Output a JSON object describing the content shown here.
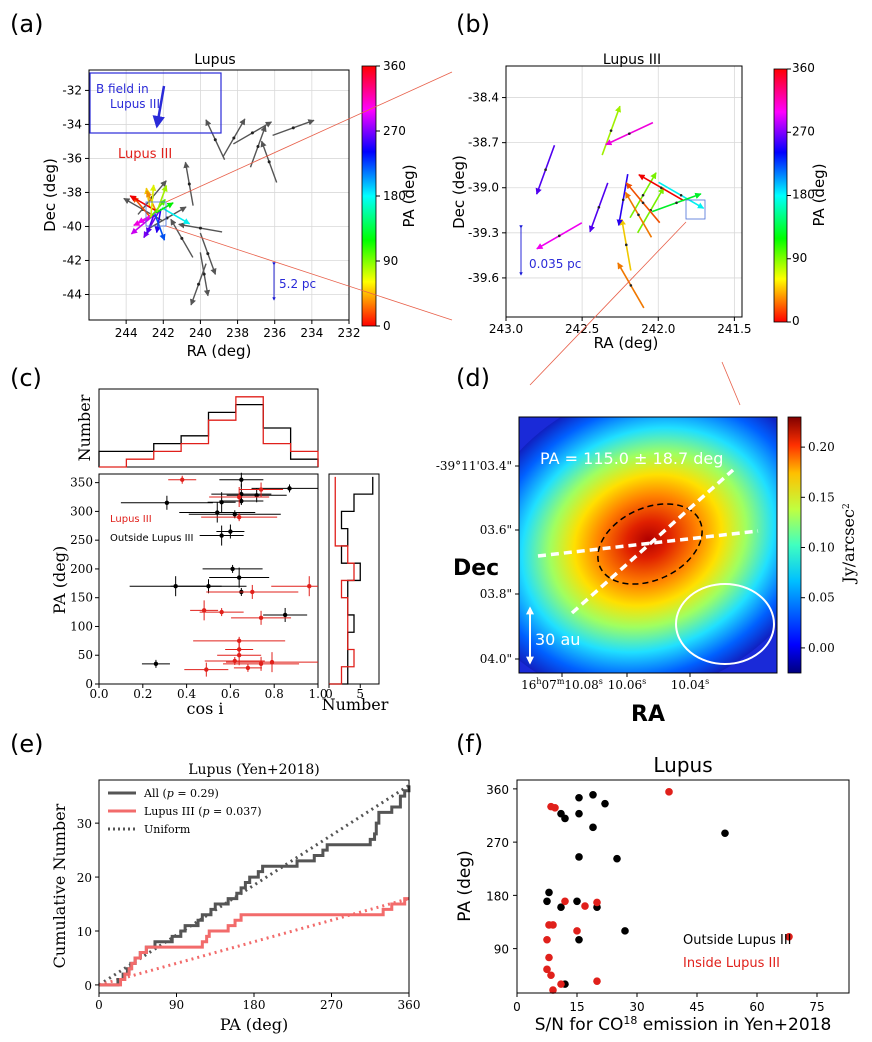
{
  "panels": {
    "a": {
      "label": "(a)"
    },
    "b": {
      "label": "(b)"
    },
    "c": {
      "label": "(c)"
    },
    "d": {
      "label": "(d)"
    },
    "e": {
      "label": "(e)"
    },
    "f": {
      "label": "(f)"
    }
  },
  "chart_data": [
    {
      "panel": "a",
      "type": "scatter",
      "title": "Lupus",
      "xlabel": "RA (deg)",
      "ylabel": "Dec (deg)",
      "xticks": [
        "244",
        "242",
        "240",
        "238",
        "236",
        "234",
        "232"
      ],
      "yticks": [
        "-32",
        "-34",
        "-36",
        "-38",
        "-40",
        "-42",
        "-44"
      ],
      "xlim": [
        246,
        232
      ],
      "ylim": [
        -45.5,
        -30.8
      ],
      "inset_text": [
        "B field in",
        "Lupus III"
      ],
      "region_label": "Lupus III",
      "scale_label": "5.2 pc",
      "colorbar": {
        "label": "PA (deg)",
        "ticks": [
          "360",
          "270",
          "180",
          "90",
          "0"
        ]
      },
      "gray_vectors": [
        {
          "ra": 239.2,
          "dec": -34.9,
          "pa": 25
        },
        {
          "ra": 238.2,
          "dec": -34.8,
          "pa": 330
        },
        {
          "ra": 237.2,
          "dec": -34.5,
          "pa": 300
        },
        {
          "ra": 236.9,
          "dec": -35.3,
          "pa": 340
        },
        {
          "ra": 235.0,
          "dec": -34.2,
          "pa": 290
        },
        {
          "ra": 236.3,
          "dec": -36.2,
          "pa": 20
        },
        {
          "ra": 240.6,
          "dec": -37.5,
          "pa": 10
        },
        {
          "ra": 243.1,
          "dec": -39.0,
          "pa": 60
        },
        {
          "ra": 240.0,
          "dec": -40.1,
          "pa": 80
        },
        {
          "ra": 241.0,
          "dec": -40.7,
          "pa": 30
        },
        {
          "ra": 239.6,
          "dec": -41.6,
          "pa": 200
        },
        {
          "ra": 239.8,
          "dec": -42.8,
          "pa": 190
        },
        {
          "ra": 240.1,
          "dec": -43.4,
          "pa": 160
        },
        {
          "ra": 241.8,
          "dec": -39.5,
          "pa": 300
        },
        {
          "ra": 242.6,
          "dec": -38.3,
          "pa": 320
        }
      ],
      "colored_vectors": [
        {
          "pa": 10
        },
        {
          "pa": 25
        },
        {
          "pa": 40
        },
        {
          "pa": 60
        },
        {
          "pa": 115
        },
        {
          "pa": 120
        },
        {
          "pa": 130
        },
        {
          "pa": 150
        },
        {
          "pa": 160
        },
        {
          "pa": 170
        },
        {
          "pa": 200
        },
        {
          "pa": 240
        },
        {
          "pa": 300
        },
        {
          "pa": 320
        },
        {
          "pa": 340
        },
        {
          "pa": 355
        }
      ]
    },
    {
      "panel": "b",
      "type": "scatter",
      "title": "Lupus III",
      "xlabel": "RA (deg)",
      "ylabel": "Dec (deg)",
      "xticks": [
        "243.0",
        "242.5",
        "242.0",
        "241.5"
      ],
      "yticks": [
        "-38.4",
        "-38.7",
        "-39.0",
        "-39.3",
        "-39.6"
      ],
      "xlim": [
        243.0,
        241.45
      ],
      "ylim": [
        -39.86,
        -38.19
      ],
      "scale_label": "0.035 pc",
      "colorbar": {
        "label": "PA (deg)",
        "ticks": [
          "360",
          "270",
          "180",
          "90",
          "0"
        ]
      },
      "vectors": [
        {
          "ra": 242.31,
          "dec": -38.62,
          "pa": 340
        },
        {
          "ra": 242.19,
          "dec": -38.64,
          "pa": 115
        },
        {
          "ra": 242.74,
          "dec": -38.88,
          "pa": 160
        },
        {
          "ra": 242.65,
          "dec": -39.32,
          "pa": 120
        },
        {
          "ra": 242.39,
          "dec": -39.13,
          "pa": 160
        },
        {
          "ra": 242.21,
          "dec": -39.38,
          "pa": 10
        },
        {
          "ra": 242.23,
          "dec": -39.08,
          "pa": 170
        },
        {
          "ra": 242.1,
          "dec": -39.05,
          "pa": 330
        },
        {
          "ra": 242.05,
          "dec": -39.15,
          "pa": 330
        },
        {
          "ra": 242.1,
          "dec": -39.1,
          "pa": 40
        },
        {
          "ra": 241.98,
          "dec": -39.0,
          "pa": 60
        },
        {
          "ra": 241.85,
          "dec": -39.05,
          "pa": 240
        },
        {
          "ra": 241.88,
          "dec": -39.1,
          "pa": 290
        },
        {
          "ra": 242.13,
          "dec": -39.18,
          "pa": 30
        },
        {
          "ra": 242.18,
          "dec": -39.65,
          "pa": 30
        }
      ]
    },
    {
      "panel": "c",
      "type": "scatter",
      "xlabel": "cos i",
      "ylabel": "PA (deg)",
      "xticks": [
        "0.0",
        "0.2",
        "0.4",
        "0.6",
        "0.8",
        "1.0"
      ],
      "yticks": [
        "0",
        "50",
        "100",
        "150",
        "200",
        "250",
        "300",
        "350"
      ],
      "xlim": [
        0,
        1
      ],
      "ylim": [
        0,
        365
      ],
      "top_hist_label": "Number",
      "right_hist_label": "Number",
      "right_hist_ticks": [
        "0",
        "5"
      ],
      "legend": [
        "Lupus III",
        "Outside Lupus III"
      ],
      "outside_points": [
        {
          "x": 0.26,
          "y": 35
        },
        {
          "x": 0.65,
          "y": 355
        },
        {
          "x": 0.65,
          "y": 330
        },
        {
          "x": 0.87,
          "y": 340
        },
        {
          "x": 0.31,
          "y": 315
        },
        {
          "x": 0.56,
          "y": 316
        },
        {
          "x": 0.65,
          "y": 318
        },
        {
          "x": 0.72,
          "y": 328
        },
        {
          "x": 0.54,
          "y": 298
        },
        {
          "x": 0.62,
          "y": 295
        },
        {
          "x": 0.6,
          "y": 265
        },
        {
          "x": 0.56,
          "y": 258
        },
        {
          "x": 0.61,
          "y": 200
        },
        {
          "x": 0.5,
          "y": 170
        },
        {
          "x": 0.35,
          "y": 170
        },
        {
          "x": 0.65,
          "y": 160
        },
        {
          "x": 0.85,
          "y": 120
        },
        {
          "x": 0.64,
          "y": 185
        }
      ],
      "lupus3_points": [
        {
          "x": 0.38,
          "y": 355
        },
        {
          "x": 0.74,
          "y": 338
        },
        {
          "x": 0.64,
          "y": 325
        },
        {
          "x": 0.64,
          "y": 290
        },
        {
          "x": 0.7,
          "y": 160
        },
        {
          "x": 0.48,
          "y": 128
        },
        {
          "x": 0.56,
          "y": 125
        },
        {
          "x": 0.74,
          "y": 115
        },
        {
          "x": 0.96,
          "y": 170
        },
        {
          "x": 0.64,
          "y": 75
        },
        {
          "x": 0.64,
          "y": 60
        },
        {
          "x": 0.64,
          "y": 50
        },
        {
          "x": 0.62,
          "y": 40
        },
        {
          "x": 0.74,
          "y": 35
        },
        {
          "x": 0.79,
          "y": 38
        },
        {
          "x": 0.68,
          "y": 28
        },
        {
          "x": 0.49,
          "y": 25
        }
      ],
      "cos_hist_bins": [
        0,
        0.125,
        0.25,
        0.375,
        0.5,
        0.625,
        0.75,
        0.875,
        1.0
      ],
      "cos_hist_all": [
        2,
        2,
        3,
        4,
        7,
        8,
        5,
        1
      ],
      "cos_hist_lupus3": [
        0,
        1,
        2,
        3,
        6,
        9,
        3,
        2
      ],
      "pa_hist_bins": [
        0,
        30,
        60,
        90,
        120,
        150,
        180,
        210,
        240,
        270,
        300,
        330,
        360
      ],
      "pa_hist_all": [
        3,
        3,
        3,
        4,
        3,
        3,
        5,
        2,
        3,
        2,
        4,
        7
      ],
      "pa_hist_lupus3": [
        2,
        4,
        3,
        3,
        3,
        2,
        4,
        3,
        1,
        1,
        1,
        1
      ]
    },
    {
      "panel": "d",
      "type": "heatmap",
      "annotation": "PA = 115.0 ± 18.7 deg",
      "xlabel": "RA",
      "ylabel": "Dec",
      "yticks": [
        "-39°11'03.4\"",
        "03.6\"",
        "03.8\"",
        "04.0\""
      ],
      "xticks": [
        "16h07m10.08s",
        "10.06s",
        "10.04s"
      ],
      "xticks_rich": [
        {
          "pre": "16",
          "s1": "h",
          "m": "07",
          "s2": "m",
          "rest": "10.08",
          "s3": "s"
        },
        {
          "pre": "10.06",
          "s1": "s"
        },
        {
          "pre": "10.04",
          "s1": "s"
        }
      ],
      "scale_label": "30 au",
      "colorbar": {
        "label": "Jy/arcsec",
        "label_sup": "2",
        "ticks": [
          "0.20",
          "0.15",
          "0.10",
          "0.05",
          "0.00"
        ],
        "tick_values": [
          0.2,
          0.15,
          0.1,
          0.05,
          0.0
        ],
        "range": [
          -0.025,
          0.23
        ]
      }
    },
    {
      "panel": "e",
      "type": "line",
      "title": "Lupus (Yen+2018)",
      "xlabel": "PA (deg)",
      "ylabel": "Cumulative Number",
      "xticks": [
        "0",
        "90",
        "180",
        "270",
        "360"
      ],
      "yticks": [
        "0",
        "10",
        "20",
        "30"
      ],
      "xlim": [
        0,
        360
      ],
      "ylim": [
        -1.5,
        38
      ],
      "series": [
        {
          "name": "All (p = 0.29)",
          "name_main": "All (",
          "name_p": "p",
          "name_tail": " = 0.29)",
          "color": "#555555",
          "x": [
            0,
            18,
            22,
            28,
            33,
            37,
            42,
            48,
            55,
            65,
            85,
            95,
            100,
            115,
            120,
            130,
            135,
            150,
            160,
            165,
            170,
            175,
            185,
            190,
            220,
            230,
            245,
            250,
            260,
            265,
            300,
            315,
            320,
            322,
            325,
            340,
            350,
            355,
            360
          ],
          "y": [
            0,
            0,
            1,
            2,
            3,
            4,
            5,
            6,
            7,
            8,
            9,
            10,
            11,
            12,
            13,
            14,
            15,
            16,
            17,
            18,
            19,
            20,
            21,
            22,
            22,
            23,
            23,
            24,
            25,
            26,
            26,
            27,
            28,
            30,
            32,
            33,
            35,
            36,
            37
          ]
        },
        {
          "name": "Lupus III (p = 0.037)",
          "name_main": "Lupus III (",
          "name_p": "p",
          "name_tail": " = 0.037)",
          "color": "#f26b6b",
          "x": [
            0,
            20,
            25,
            30,
            35,
            38,
            42,
            48,
            55,
            115,
            120,
            125,
            128,
            150,
            158,
            165,
            170,
            330,
            340,
            355,
            360
          ],
          "y": [
            0,
            0,
            1,
            2,
            3,
            4,
            5,
            6,
            7,
            7,
            8,
            9,
            10,
            11,
            12,
            13,
            13,
            14,
            15,
            16,
            16
          ]
        },
        {
          "name": "Uniform",
          "style": "dotted",
          "segments": [
            {
              "x": [
                0,
                360
              ],
              "y": [
                0,
                37
              ]
            },
            {
              "x": [
                0,
                360
              ],
              "y": [
                0,
                16
              ]
            }
          ]
        }
      ]
    },
    {
      "panel": "f",
      "type": "scatter",
      "title": "Lupus",
      "xlabel_main": "S/N for CO",
      "xlabel_sup": "18",
      "xlabel_tail": " emission in Yen+2018",
      "ylabel": "PA (deg)",
      "xticks": [
        "0",
        "15",
        "30",
        "45",
        "60",
        "75"
      ],
      "yticks": [
        "90",
        "180",
        "270",
        "360"
      ],
      "xlim": [
        0,
        83
      ],
      "ylim": [
        15,
        375
      ],
      "legend": [
        {
          "label": "Outside Lupus III",
          "color": "#000000"
        },
        {
          "label": "Inside Lupus III",
          "color": "#e0201b"
        }
      ],
      "outside": [
        {
          "x": 15.5,
          "y": 345
        },
        {
          "x": 19,
          "y": 350
        },
        {
          "x": 22,
          "y": 335
        },
        {
          "x": 11,
          "y": 318
        },
        {
          "x": 12,
          "y": 310
        },
        {
          "x": 15.5,
          "y": 318
        },
        {
          "x": 19,
          "y": 295
        },
        {
          "x": 52,
          "y": 285
        },
        {
          "x": 15.5,
          "y": 245
        },
        {
          "x": 25,
          "y": 242
        },
        {
          "x": 8,
          "y": 185
        },
        {
          "x": 7.5,
          "y": 170
        },
        {
          "x": 11,
          "y": 160
        },
        {
          "x": 15,
          "y": 170
        },
        {
          "x": 20,
          "y": 160
        },
        {
          "x": 27,
          "y": 120
        },
        {
          "x": 15.5,
          "y": 105
        },
        {
          "x": 12,
          "y": 30
        }
      ],
      "inside": [
        {
          "x": 38,
          "y": 355
        },
        {
          "x": 8.5,
          "y": 330
        },
        {
          "x": 9.5,
          "y": 328
        },
        {
          "x": 12,
          "y": 170
        },
        {
          "x": 17,
          "y": 162
        },
        {
          "x": 20,
          "y": 168
        },
        {
          "x": 8,
          "y": 130
        },
        {
          "x": 9,
          "y": 130
        },
        {
          "x": 15,
          "y": 120
        },
        {
          "x": 7.5,
          "y": 105
        },
        {
          "x": 68,
          "y": 110
        },
        {
          "x": 8,
          "y": 75
        },
        {
          "x": 7.5,
          "y": 55
        },
        {
          "x": 8.5,
          "y": 45
        },
        {
          "x": 9,
          "y": 20
        },
        {
          "x": 11,
          "y": 30
        },
        {
          "x": 20,
          "y": 35
        }
      ]
    }
  ]
}
